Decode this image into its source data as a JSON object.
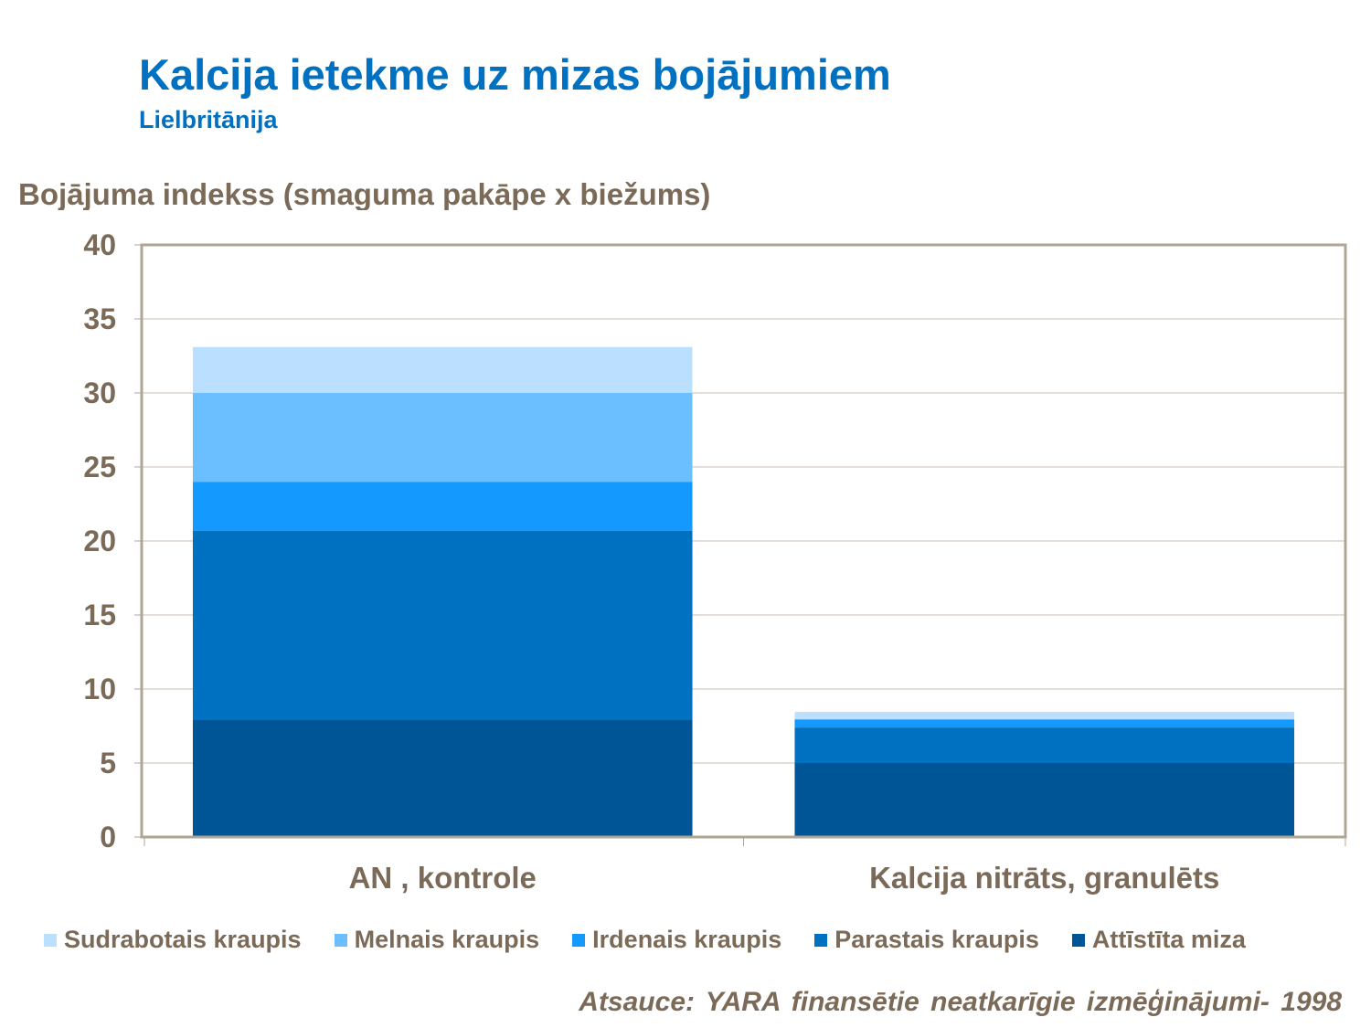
{
  "chart_data": {
    "type": "bar",
    "stacked": true,
    "title": "Kalcija ietekme uz mizas bojājumiem",
    "subtitle": "Lielbritānija",
    "ylabel": "Bojājuma indekss (smaguma pakāpe x biežums)",
    "xlabel": "",
    "ylim": [
      0,
      40
    ],
    "yticks": [
      0,
      5,
      10,
      15,
      20,
      25,
      30,
      35,
      40
    ],
    "grid": true,
    "legend_position": "bottom",
    "categories": [
      "AN , kontrole",
      "Kalcija nitrāts, granulēts"
    ],
    "series": [
      {
        "name": "Attīstīta miza",
        "color": "#005596",
        "values": [
          7.9,
          5.0
        ]
      },
      {
        "name": "Parastais kraupis",
        "color": "#0070C0",
        "values": [
          12.8,
          2.4
        ]
      },
      {
        "name": "Irdenais kraupis",
        "color": "#1499FF",
        "values": [
          3.3,
          0.55
        ]
      },
      {
        "name": "Melnais kraupis",
        "color": "#6CBFFF",
        "values": [
          6.0,
          0
        ]
      },
      {
        "name": "Sudrabotais kraupis",
        "color": "#BBE0FF",
        "values": [
          3.1,
          0.5
        ]
      }
    ],
    "legend_order": [
      "Sudrabotais kraupis",
      "Melnais kraupis",
      "Irdenais kraupis",
      "Parastais kraupis",
      "Attīstīta miza"
    ],
    "source": "Atsauce: YARA finansētie neatkarīgie izmēģinājumi- 1998"
  },
  "colors": {
    "title": "#0070C0",
    "text": "#7B6A58"
  }
}
